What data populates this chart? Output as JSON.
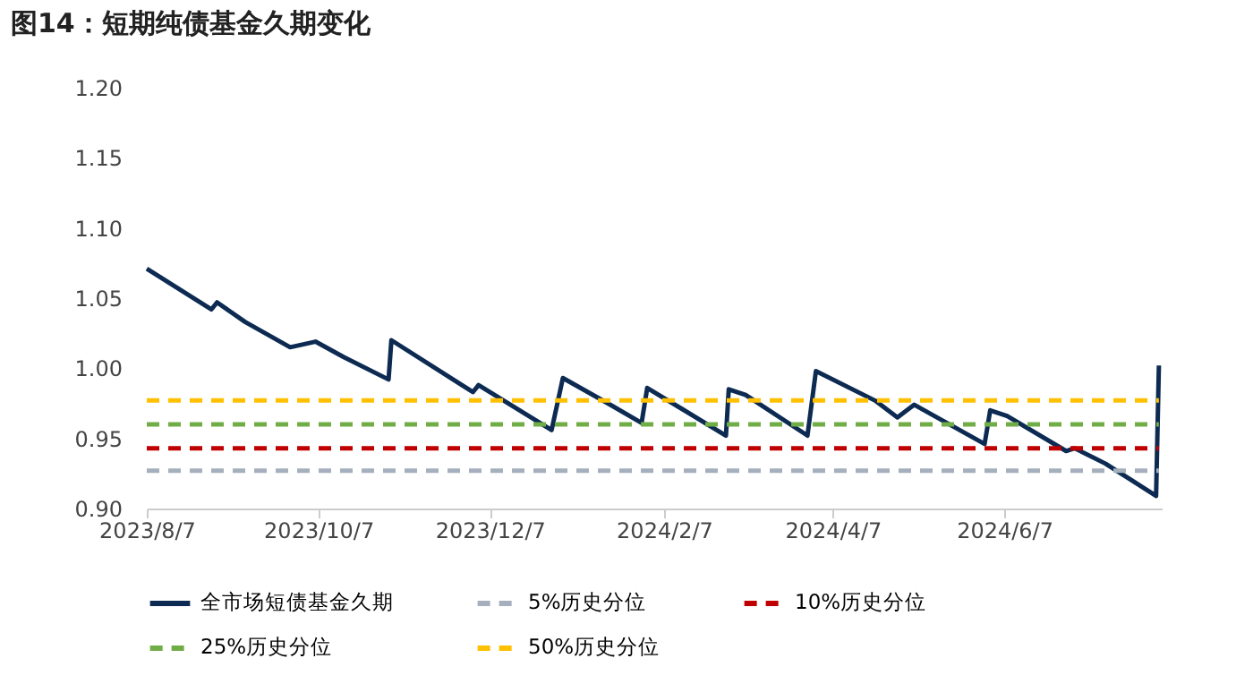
{
  "chart_data": {
    "type": "line",
    "title": "图14：短期纯债基金久期变化",
    "xlim": [
      "2023-08-07",
      "2024-08-02"
    ],
    "xticks": [
      {
        "value": "2023-08-07",
        "label": "2023/8/7"
      },
      {
        "value": "2023-10-07",
        "label": "2023/10/7"
      },
      {
        "value": "2023-12-07",
        "label": "2023/12/7"
      },
      {
        "value": "2024-02-07",
        "label": "2024/2/7"
      },
      {
        "value": "2024-04-07",
        "label": "2024/4/7"
      },
      {
        "value": "2024-06-07",
        "label": "2024/6/7"
      }
    ],
    "ylim": [
      0.9,
      1.2
    ],
    "yticks": [
      {
        "value": 0.9,
        "label": "0.90"
      },
      {
        "value": 0.95,
        "label": "0.95"
      },
      {
        "value": 1.0,
        "label": "1.00"
      },
      {
        "value": 1.05,
        "label": "1.05"
      },
      {
        "value": 1.1,
        "label": "1.10"
      },
      {
        "value": 1.15,
        "label": "1.15"
      },
      {
        "value": 1.2,
        "label": "1.20"
      }
    ],
    "legend": "bottom",
    "series": [
      {
        "name": "全市场短债基金久期",
        "color": "#0d2b52",
        "line_style": "solid",
        "x": [
          "2023-08-07",
          "2023-08-30",
          "2023-09-01",
          "2023-09-11",
          "2023-09-27",
          "2023-10-06",
          "2023-10-16",
          "2023-11-01",
          "2023-11-02",
          "2023-12-01",
          "2023-12-03",
          "2023-12-29",
          "2024-01-02",
          "2024-01-18",
          "2024-01-30",
          "2024-02-01",
          "2024-02-29",
          "2024-03-01",
          "2024-03-07",
          "2024-03-29",
          "2024-04-01",
          "2024-04-22",
          "2024-04-30",
          "2024-05-06",
          "2024-05-31",
          "2024-06-02",
          "2024-06-08",
          "2024-06-29",
          "2024-07-02",
          "2024-07-13",
          "2024-07-31",
          "2024-08-01"
        ],
        "values": [
          1.071,
          1.042,
          1.047,
          1.033,
          1.015,
          1.019,
          1.008,
          0.992,
          1.02,
          0.983,
          0.988,
          0.956,
          0.993,
          0.975,
          0.961,
          0.986,
          0.952,
          0.985,
          0.981,
          0.952,
          0.998,
          0.977,
          0.965,
          0.974,
          0.946,
          0.97,
          0.966,
          0.941,
          0.943,
          0.932,
          0.909,
          1.002
        ]
      },
      {
        "name": "5%历史分位",
        "color": "#a5afbd",
        "line_style": "dashed",
        "x": [
          "2023-08-07",
          "2024-08-01"
        ],
        "values": [
          0.927,
          0.927
        ]
      },
      {
        "name": "10%历史分位",
        "color": "#c00000",
        "line_style": "dashed",
        "x": [
          "2023-08-07",
          "2024-08-01"
        ],
        "values": [
          0.943,
          0.943
        ]
      },
      {
        "name": "25%历史分位",
        "color": "#70ad47",
        "line_style": "dashed",
        "x": [
          "2023-08-07",
          "2024-08-01"
        ],
        "values": [
          0.96,
          0.96
        ]
      },
      {
        "name": "50%历史分位",
        "color": "#ffc000",
        "line_style": "dashed",
        "x": [
          "2023-08-07",
          "2024-08-01"
        ],
        "values": [
          0.977,
          0.977
        ]
      }
    ]
  }
}
